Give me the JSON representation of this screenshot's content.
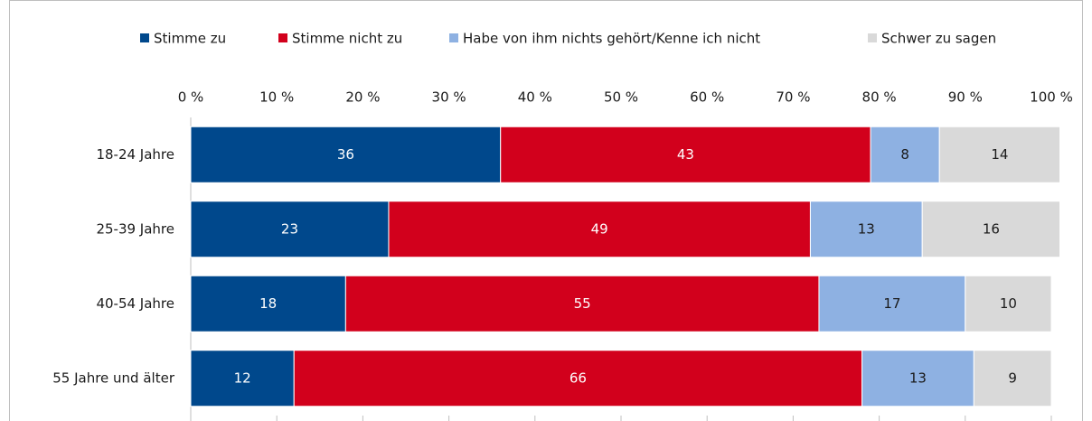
{
  "chart_data": {
    "type": "stacked_barh",
    "categories": [
      "18-24 Jahre",
      "25-39 Jahre",
      "40-54 Jahre",
      "55 Jahre und älter"
    ],
    "series": [
      {
        "name": "Stimme zu",
        "color": "#00488c",
        "values": [
          36,
          23,
          18,
          12
        ]
      },
      {
        "name": "Stimme nicht zu",
        "color": "#d2001c",
        "values": [
          43,
          49,
          55,
          66
        ]
      },
      {
        "name": "Habe von ihm nichts gehört/Kenne ich nicht",
        "color": "#8eb1e2",
        "values": [
          8,
          13,
          17,
          13
        ]
      },
      {
        "name": "Schwer zu sagen",
        "color": "#d9d9d9",
        "values": [
          14,
          16,
          10,
          9
        ]
      }
    ],
    "xlim": [
      0,
      100
    ],
    "xticks": [
      {
        "value": 0,
        "label": "0 %"
      },
      {
        "value": 10,
        "label": "10 %"
      },
      {
        "value": 20,
        "label": "20 %"
      },
      {
        "value": 30,
        "label": "30 %"
      },
      {
        "value": 40,
        "label": "40 %"
      },
      {
        "value": 50,
        "label": "50 %"
      },
      {
        "value": 60,
        "label": "60 %"
      },
      {
        "value": 70,
        "label": "70 %"
      },
      {
        "value": 80,
        "label": "80 %"
      },
      {
        "value": 90,
        "label": "90 %"
      },
      {
        "value": 100,
        "label": "100 %"
      }
    ],
    "legend": "top"
  }
}
